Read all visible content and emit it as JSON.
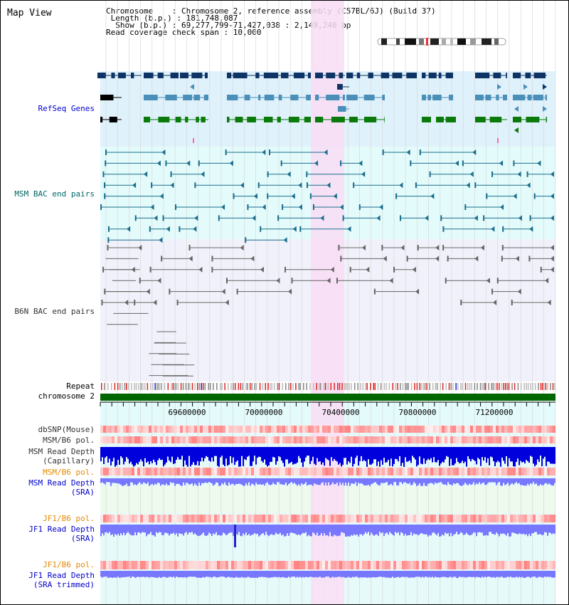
{
  "header": {
    "title": "Map View",
    "info_lines": [
      "Chromosome    : Chromosome 2, reference assembly (C57BL/6J) (Build 37)",
      " Length (b.p.) : 181,748,087",
      "  Show (b.p.) : 69,277,799-71,427,038 : 2,149,240 bp",
      "Read coverage check span : 10,000"
    ]
  },
  "tracks": {
    "refseq": "RefSeq Genes",
    "msm_bac": "MSM BAC end pairs",
    "b6n_bac": "B6N BAC end pairs",
    "repeat": "Repeat",
    "chromosome": "chromosome 2",
    "dbsnp": "dbSNP(Mouse)",
    "msm_b6_pol_1": "MSM/B6 pol.",
    "msm_read_depth_cap_1": "MSM Read Depth",
    "msm_read_depth_cap_2": "(Capillary)",
    "msm_b6_pol_2": "MSM/B6 pol.",
    "msm_read_depth_sra_1": "MSM Read Depth",
    "msm_read_depth_sra_2": "(SRA)",
    "jf1_b6_pol_1": "JF1/B6 pol.",
    "jf1_read_depth_sra_1": "JF1 Read Depth",
    "jf1_read_depth_sra_2": "(SRA)",
    "jf1_b6_pol_2": "JF1/B6 pol.",
    "jf1_read_depth_trim_1": "JF1 Read Depth",
    "jf1_read_depth_trim_2": "(SRA trimmed)"
  },
  "axis": {
    "ticks": [
      "69600000",
      "70000000",
      "70400000",
      "70800000",
      "71200000"
    ]
  },
  "colors": {
    "highlight": "#f9ddf5",
    "refseq_bg": "#dff1fb",
    "bac_bg": "#e4fbfb",
    "gene_dark": "#0d3465",
    "gene_mid": "#4a8fb8",
    "gene_green": "#0a7a0a",
    "bac_teal": "#1a6e8e",
    "bac_gray": "#666666",
    "depth_blue": "#0000dd",
    "depth_light": "#7777ff",
    "chromosome": "#006600"
  }
}
